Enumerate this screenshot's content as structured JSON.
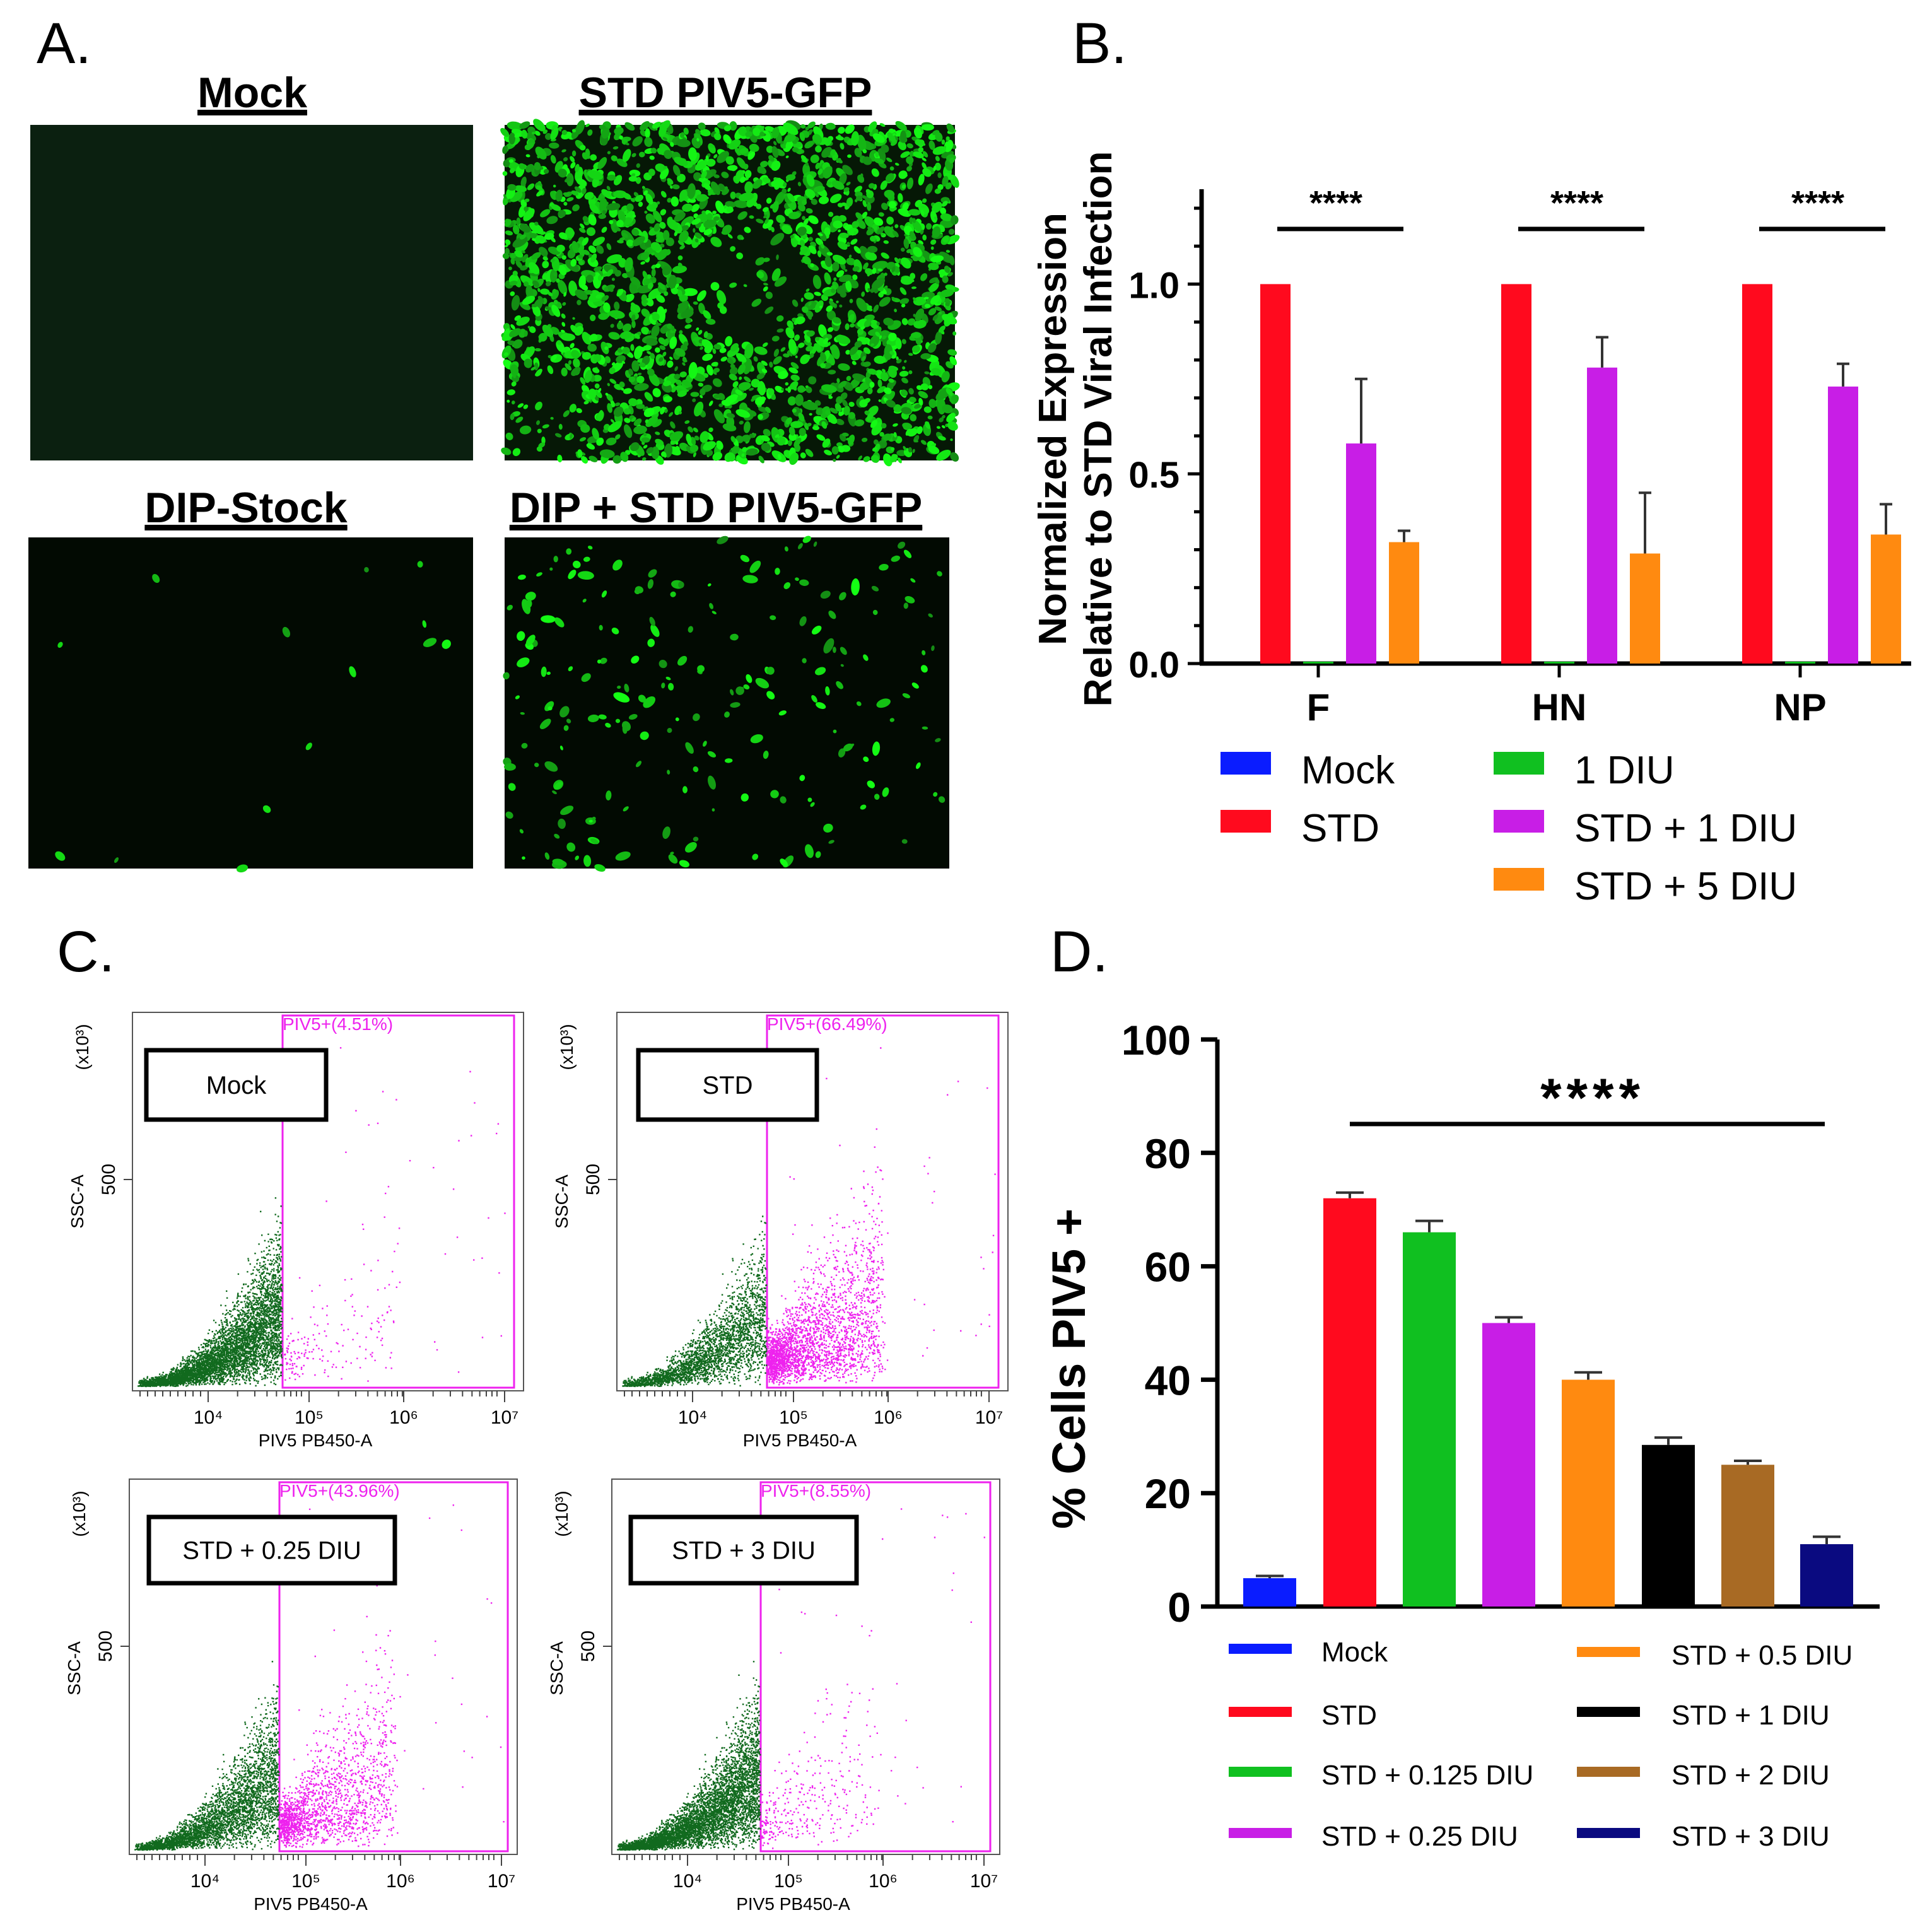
{
  "colors": {
    "mock": "#0a1cff",
    "std": "#ff0a1e",
    "diu1": "#10c020",
    "std_diu1": "#c81ee6",
    "std_diu5": "#ff8a10",
    "green_dots": "#116a1e",
    "pink_dots": "#ee22ee",
    "black": "#000000",
    "brown": "#a86a24",
    "navy": "#0a0a80"
  },
  "panel_a": {
    "letter": "A.",
    "images": [
      {
        "title": "Mock",
        "density": "none"
      },
      {
        "title": "STD PIV5-GFP",
        "density": "high"
      },
      {
        "title": "DIP-Stock",
        "density": "sparse"
      },
      {
        "title": "DIP + STD PIV5-GFP",
        "density": "low"
      }
    ]
  },
  "panel_b": {
    "letter": "B.",
    "chart_data": {
      "type": "bar",
      "ylabel_line1": "Normalized Expression",
      "ylabel_line2": "Relative to STD Viral Infection",
      "ylim": [
        0,
        1.25
      ],
      "yticks": [
        "0.0",
        "0.5",
        "1.0"
      ],
      "ytick_values": [
        0.0,
        0.5,
        1.0
      ],
      "categories": [
        "F",
        "HN",
        "NP"
      ],
      "series": [
        {
          "name": "Mock",
          "color_key": "mock",
          "values": [
            0.0,
            0.0,
            0.0
          ],
          "errors": [
            0,
            0,
            0
          ]
        },
        {
          "name": "STD",
          "color_key": "std",
          "values": [
            1.0,
            1.0,
            1.0
          ],
          "errors": [
            0,
            0,
            0
          ]
        },
        {
          "name": "1 DIU",
          "color_key": "diu1",
          "values": [
            0.005,
            0.005,
            0.005
          ],
          "errors": [
            0,
            0,
            0
          ]
        },
        {
          "name": "STD + 1  DIU",
          "color_key": "std_diu1",
          "values": [
            0.58,
            0.78,
            0.73
          ],
          "errors": [
            0.17,
            0.08,
            0.06
          ]
        },
        {
          "name": "STD + 5  DIU",
          "color_key": "std_diu5",
          "values": [
            0.32,
            0.29,
            0.34
          ],
          "errors": [
            0.03,
            0.16,
            0.08
          ]
        }
      ],
      "significance": [
        "****",
        "****",
        "****"
      ],
      "legend_columns": [
        [
          "Mock",
          "STD"
        ],
        [
          "1 DIU",
          "STD + 1  DIU",
          "STD + 5  DIU"
        ]
      ]
    }
  },
  "panel_c": {
    "letter": "C.",
    "plots": [
      {
        "label": "Mock",
        "gate": "PIV5+(4.51%)",
        "pink_fraction": 0.045
      },
      {
        "label": "STD",
        "gate": "PIV5+(66.49%)",
        "pink_fraction": 0.665
      },
      {
        "label": "STD + 0.25 DIU",
        "gate": "PIV5+(43.96%)",
        "pink_fraction": 0.44
      },
      {
        "label": "STD + 3 DIU",
        "gate": "PIV5+(8.55%)",
        "pink_fraction": 0.085
      }
    ],
    "xlabel": "PIV5 PB450-A",
    "ylabel": "SSC-A",
    "yscale": "(x10³)",
    "ytick": "500",
    "xticks": [
      "10⁴",
      "10⁵",
      "10⁶",
      "10⁷"
    ]
  },
  "panel_d": {
    "letter": "D.",
    "chart_data": {
      "type": "bar",
      "ylabel": "% Cells  PIV5 +",
      "ylim": [
        0,
        100
      ],
      "yticks": [
        "0",
        "20",
        "40",
        "60",
        "80",
        "100"
      ],
      "ytick_values": [
        0,
        20,
        40,
        60,
        80,
        100
      ],
      "categories": [
        "Mock",
        "STD",
        "STD + 0.125 DIU",
        "STD + 0.25 DIU",
        "STD + 0.5 DIU",
        "STD + 1 DIU",
        "STD + 2 DIU",
        "STD + 3 DIU"
      ],
      "values": [
        5,
        72,
        66,
        50,
        40,
        28.5,
        25,
        11
      ],
      "errors": [
        0.4,
        1,
        2,
        1,
        1.3,
        1.3,
        0.7,
        1.3
      ],
      "color_keys": [
        "mock",
        "std",
        "diu1",
        "std_diu1",
        "std_diu5",
        "black",
        "brown",
        "navy"
      ],
      "significance": "****",
      "legend_columns": [
        [
          "Mock",
          "STD",
          "STD + 0.125 DIU",
          "STD + 0.25 DIU"
        ],
        [
          "STD + 0.5 DIU",
          "STD + 1 DIU",
          "STD + 2 DIU",
          "STD + 3 DIU"
        ]
      ]
    }
  }
}
